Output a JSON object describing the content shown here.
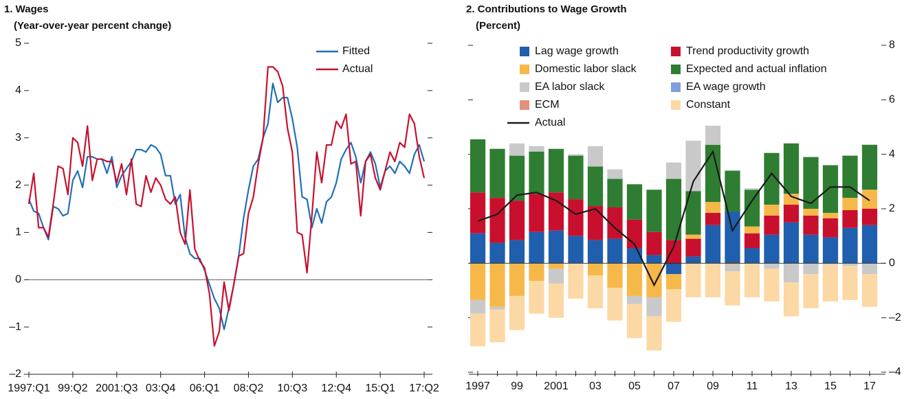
{
  "chart_data": [
    {
      "type": "line",
      "title": "1. Wages",
      "subtitle": "(Year-over-year percent change)",
      "categories": [
        "1997:Q1",
        null,
        null,
        null,
        null,
        null,
        null,
        null,
        null,
        "99:Q2",
        null,
        null,
        null,
        null,
        null,
        null,
        null,
        null,
        "2001:Q3",
        null,
        null,
        null,
        null,
        null,
        null,
        null,
        null,
        "03:Q4",
        null,
        null,
        null,
        null,
        null,
        null,
        null,
        null,
        "06:Q1",
        null,
        null,
        null,
        null,
        null,
        null,
        null,
        null,
        "08:Q2",
        null,
        null,
        null,
        null,
        null,
        null,
        null,
        null,
        "10:Q3",
        null,
        null,
        null,
        null,
        null,
        null,
        null,
        null,
        "12:Q4",
        null,
        null,
        null,
        null,
        null,
        null,
        null,
        null,
        "15:Q1",
        null,
        null,
        null,
        null,
        null,
        null,
        null,
        null,
        "17:Q2"
      ],
      "series": [
        {
          "name": "Fitted",
          "color": "#1f6fb8",
          "values": [
            1.7,
            1.45,
            1.4,
            1.1,
            0.85,
            1.55,
            1.5,
            1.35,
            1.4,
            2.1,
            2.3,
            1.95,
            2.6,
            2.6,
            2.55,
            2.55,
            2.25,
            2.6,
            1.95,
            2.2,
            2.35,
            2.5,
            2.75,
            2.75,
            2.7,
            2.85,
            2.8,
            2.65,
            2.2,
            2.2,
            1.6,
            1.8,
            0.9,
            0.55,
            0.45,
            0.45,
            0.2,
            -0.1,
            -0.4,
            -0.6,
            -1.05,
            -0.6,
            -0.1,
            0.5,
            1.3,
            1.9,
            2.4,
            2.55,
            3.0,
            3.3,
            4.15,
            3.75,
            3.85,
            3.85,
            3.4,
            2.8,
            1.75,
            1.7,
            1.1,
            1.5,
            1.2,
            1.65,
            1.75,
            2.05,
            2.55,
            2.75,
            2.9,
            2.6,
            2.05,
            2.5,
            2.7,
            2.45,
            1.95,
            2.3,
            2.4,
            2.25,
            2.5,
            2.4,
            2.25,
            2.65,
            2.85,
            2.5
          ]
        },
        {
          "name": "Actual",
          "color": "#c8102e",
          "values": [
            1.6,
            2.25,
            1.1,
            1.1,
            0.9,
            1.6,
            2.4,
            2.35,
            1.8,
            3.0,
            2.9,
            2.4,
            3.25,
            2.1,
            2.55,
            2.55,
            2.5,
            2.5,
            2.05,
            2.45,
            1.8,
            2.55,
            1.6,
            1.55,
            2.2,
            1.85,
            2.15,
            2.0,
            1.7,
            1.6,
            1.75,
            1.0,
            0.75,
            1.9,
            0.65,
            0.4,
            0.25,
            -0.3,
            -1.4,
            -1.1,
            -0.05,
            -0.65,
            -0.1,
            0.5,
            0.55,
            1.4,
            1.75,
            2.45,
            3.0,
            4.5,
            4.5,
            4.4,
            4.1,
            3.2,
            2.7,
            1.0,
            0.95,
            0.15,
            1.35,
            2.7,
            2.05,
            2.85,
            2.85,
            3.35,
            3.2,
            3.5,
            2.45,
            2.5,
            1.35,
            2.5,
            2.65,
            2.15,
            1.9,
            2.3,
            2.7,
            2.5,
            2.9,
            2.8,
            3.5,
            3.3,
            2.6,
            2.15
          ]
        }
      ],
      "ylim": [
        -2,
        5
      ],
      "yticks": [
        {
          "value": -2,
          "label": "–2"
        },
        {
          "value": -1,
          "label": "–1"
        },
        0,
        1,
        2,
        3,
        4,
        5
      ],
      "legend": "upper right"
    },
    {
      "type": "stacked_bar",
      "title": "2. Contributions to Wage Growth",
      "subtitle": "(Percent)",
      "categories": [
        "1997",
        null,
        "99",
        null,
        "2001",
        null,
        "03",
        null,
        "05",
        null,
        "07",
        null,
        "09",
        null,
        "11",
        null,
        "13",
        null,
        "15",
        null,
        "17"
      ],
      "series": [
        {
          "name": "Lag wage growth",
          "color": "#1f5fad",
          "values": [
            1.1,
            0.75,
            0.85,
            1.15,
            1.2,
            1.0,
            0.85,
            0.9,
            0.55,
            0.3,
            -0.4,
            0.25,
            1.4,
            1.9,
            0.55,
            1.05,
            1.5,
            1.05,
            0.95,
            1.3,
            1.4
          ]
        },
        {
          "name": "Trend productivity growth",
          "color": "#c8102e",
          "values": [
            1.5,
            1.65,
            1.45,
            1.4,
            1.4,
            1.35,
            1.25,
            1.15,
            1.05,
            0.85,
            0.85,
            0.65,
            0.45,
            0,
            0.55,
            0.7,
            0.65,
            0.7,
            0.7,
            0.65,
            0.6
          ]
        },
        {
          "name": "Domestic labor slack",
          "color": "#f7b84a",
          "values": [
            -1.35,
            -1.6,
            -1.2,
            -0.65,
            -0.2,
            0,
            -0.45,
            -0.9,
            -1.2,
            -1.25,
            -0.55,
            0.15,
            0.4,
            -0.05,
            0.25,
            0.4,
            0.4,
            0.25,
            0.2,
            0.45,
            0.7
          ]
        },
        {
          "name": "Expected and actual inflation",
          "color": "#2f7d32",
          "values": [
            1.95,
            1.8,
            1.65,
            1.55,
            1.6,
            1.6,
            1.45,
            1.05,
            1.3,
            1.55,
            2.25,
            1.6,
            2.1,
            1.5,
            1.35,
            1.9,
            1.85,
            1.9,
            1.75,
            1.55,
            1.65
          ]
        },
        {
          "name": "EA labor slack",
          "color": "#c9c9c9",
          "values": [
            -0.5,
            -0.1,
            0.45,
            0.2,
            -0.55,
            0.05,
            0.75,
            0.35,
            -0.3,
            -0.7,
            0.6,
            1.85,
            0.7,
            -0.25,
            0.05,
            -0.2,
            -0.7,
            -0.4,
            -0.05,
            -0.1,
            -0.4
          ]
        },
        {
          "name": "EA wage growth",
          "color": "#7f9fdc",
          "values": [
            0,
            0,
            0,
            0,
            0,
            0,
            0,
            0,
            0,
            0,
            0,
            0,
            0,
            0,
            0,
            0,
            0,
            0,
            0,
            0,
            0
          ]
        },
        {
          "name": "ECM",
          "color": "#e3917f",
          "values": [
            0,
            0,
            0,
            0,
            0,
            0,
            0,
            0,
            0,
            0,
            0,
            0,
            0,
            0,
            0,
            0,
            0,
            0,
            0,
            0,
            0
          ]
        },
        {
          "name": "Constant",
          "color": "#fcd8a4",
          "values": [
            -1.2,
            -1.2,
            -1.25,
            -1.2,
            -1.25,
            -1.3,
            -1.2,
            -1.2,
            -1.25,
            -1.25,
            -1.2,
            -1.25,
            -1.25,
            -1.25,
            -1.25,
            -1.2,
            -1.25,
            -1.25,
            -1.35,
            -1.25,
            -1.2
          ]
        }
      ],
      "line": {
        "name": "Actual",
        "color": "#1a1a1a",
        "values": [
          1.55,
          1.8,
          2.5,
          2.6,
          2.3,
          1.8,
          2.0,
          1.3,
          0.7,
          -0.8,
          0.6,
          3.0,
          4.1,
          1.2,
          2.3,
          3.3,
          2.45,
          2.2,
          2.8,
          2.8,
          2.3
        ]
      },
      "ylim": [
        -4,
        8
      ],
      "yticks": [
        {
          "value": -4,
          "label": "–4"
        },
        {
          "value": -2,
          "label": "–2"
        },
        0,
        2,
        4,
        6,
        8
      ],
      "legend": "upper left"
    }
  ]
}
